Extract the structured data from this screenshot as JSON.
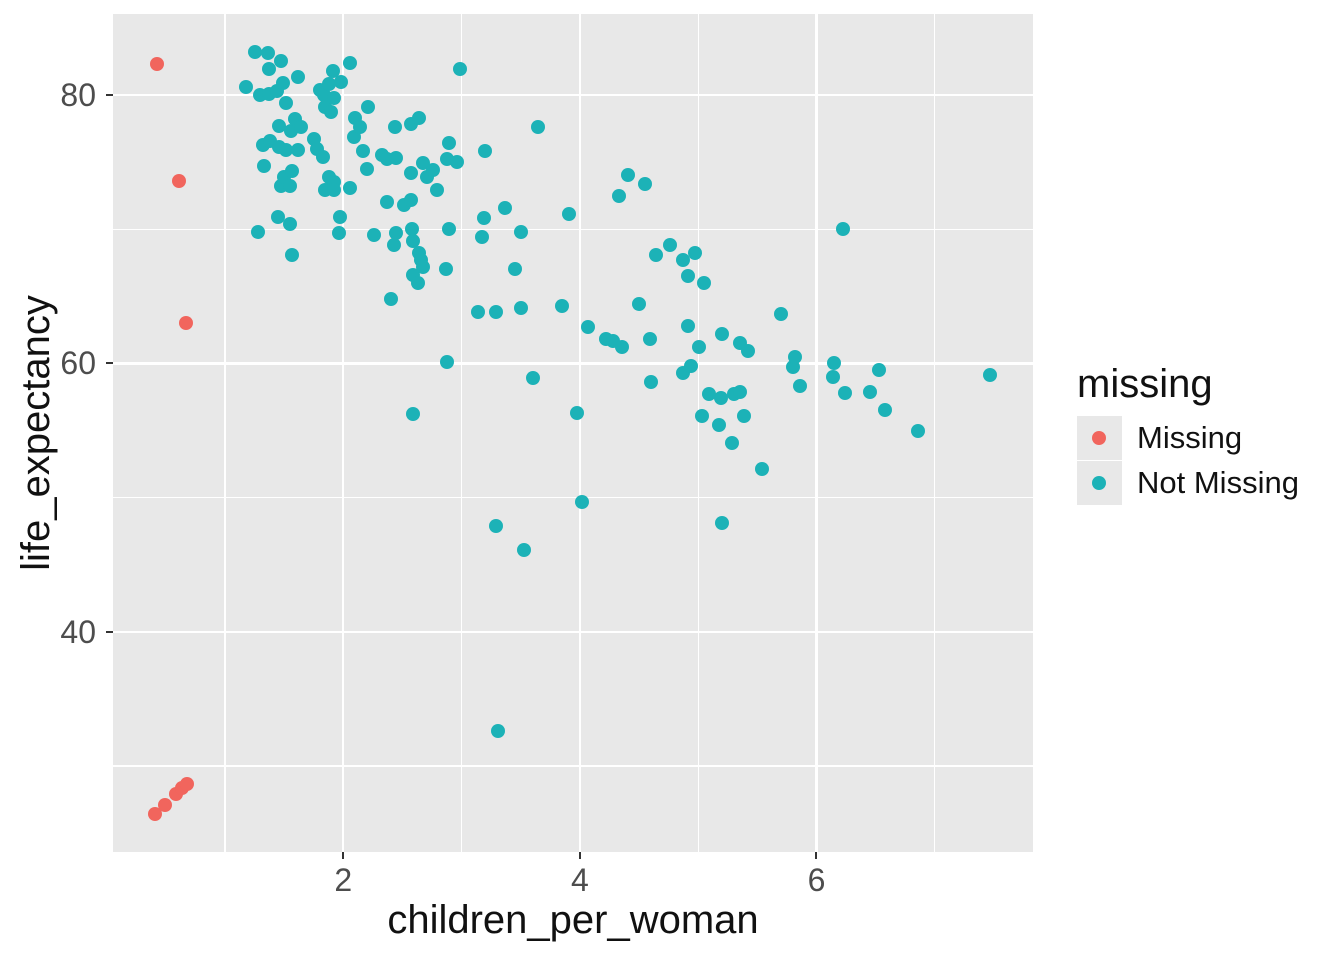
{
  "figure": {
    "background": "#FFFFFF",
    "panel_background": "#E8E8E8",
    "gridline_color": "#FFFFFF",
    "tick_color": "#333333",
    "tick_label_color": "#4D4D4D"
  },
  "legend": {
    "title": "missing",
    "items": [
      {
        "label": "Missing",
        "color": "#F1655D"
      },
      {
        "label": "Not Missing",
        "color": "#1CB2B7"
      }
    ]
  },
  "chart_data": {
    "type": "scatter",
    "title": "",
    "xlabel": "children_per_woman",
    "ylabel": "life_expectancy",
    "legend_title": "missing",
    "legend_position": "right",
    "grid": true,
    "xlim": [
      0.054,
      7.83
    ],
    "ylim": [
      23.6,
      86.03
    ],
    "x_major_ticks": [
      2,
      4,
      6
    ],
    "x_minor_ticks": [
      1,
      3,
      5,
      7
    ],
    "y_major_ticks": [
      40,
      60,
      80
    ],
    "y_minor_ticks": [
      30,
      50,
      70
    ],
    "series": [
      {
        "name": "Missing",
        "color": "#F1655D",
        "points": [
          [
            0.43,
            82.3
          ],
          [
            0.61,
            73.6
          ],
          [
            0.67,
            63.0
          ],
          [
            0.41,
            26.4
          ],
          [
            0.49,
            27.1
          ],
          [
            0.59,
            27.9
          ],
          [
            0.64,
            28.4
          ],
          [
            0.68,
            28.7
          ]
        ]
      },
      {
        "name": "Not Missing",
        "color": "#1CB2B7",
        "points": [
          [
            1.18,
            80.6
          ],
          [
            1.25,
            83.2
          ],
          [
            1.28,
            69.8
          ],
          [
            1.3,
            80.0
          ],
          [
            1.32,
            76.3
          ],
          [
            1.33,
            74.7
          ],
          [
            1.36,
            83.1
          ],
          [
            1.37,
            81.9
          ],
          [
            1.37,
            80.1
          ],
          [
            1.38,
            76.6
          ],
          [
            1.44,
            80.3
          ],
          [
            1.45,
            70.9
          ],
          [
            1.46,
            77.7
          ],
          [
            1.46,
            76.1
          ],
          [
            1.47,
            82.5
          ],
          [
            1.47,
            73.2
          ],
          [
            1.49,
            80.9
          ],
          [
            1.5,
            73.9
          ],
          [
            1.52,
            79.4
          ],
          [
            1.52,
            75.9
          ],
          [
            1.55,
            73.2
          ],
          [
            1.55,
            70.4
          ],
          [
            1.56,
            77.3
          ],
          [
            1.57,
            74.3
          ],
          [
            1.57,
            68.1
          ],
          [
            1.59,
            78.2
          ],
          [
            1.62,
            81.3
          ],
          [
            1.62,
            75.9
          ],
          [
            1.64,
            77.6
          ],
          [
            1.75,
            76.7
          ],
          [
            1.78,
            76.0
          ],
          [
            1.8,
            80.4
          ],
          [
            1.83,
            75.4
          ],
          [
            1.84,
            80.0
          ],
          [
            1.85,
            79.1
          ],
          [
            1.85,
            72.9
          ],
          [
            1.88,
            80.8
          ],
          [
            1.88,
            73.9
          ],
          [
            1.9,
            78.7
          ],
          [
            1.91,
            81.8
          ],
          [
            1.92,
            79.8
          ],
          [
            1.92,
            73.5
          ],
          [
            1.92,
            72.9
          ],
          [
            1.96,
            69.7
          ],
          [
            1.97,
            70.9
          ],
          [
            1.98,
            81.0
          ],
          [
            2.06,
            82.4
          ],
          [
            2.06,
            73.1
          ],
          [
            2.09,
            76.9
          ],
          [
            2.1,
            78.3
          ],
          [
            2.14,
            77.6
          ],
          [
            2.17,
            75.8
          ],
          [
            2.2,
            74.5
          ],
          [
            2.21,
            79.1
          ],
          [
            2.26,
            69.6
          ],
          [
            2.33,
            75.5
          ],
          [
            2.37,
            75.2
          ],
          [
            2.37,
            72.0
          ],
          [
            2.4,
            64.8
          ],
          [
            2.43,
            68.8
          ],
          [
            2.44,
            77.6
          ],
          [
            2.45,
            75.3
          ],
          [
            2.45,
            69.7
          ],
          [
            2.51,
            71.8
          ],
          [
            2.57,
            77.8
          ],
          [
            2.57,
            74.2
          ],
          [
            2.57,
            72.2
          ],
          [
            2.58,
            70.0
          ],
          [
            2.59,
            69.1
          ],
          [
            2.59,
            66.6
          ],
          [
            2.59,
            56.2
          ],
          [
            2.63,
            66.0
          ],
          [
            2.64,
            78.3
          ],
          [
            2.64,
            68.2
          ],
          [
            2.66,
            67.7
          ],
          [
            2.67,
            74.9
          ],
          [
            2.67,
            67.2
          ],
          [
            2.71,
            73.9
          ],
          [
            2.76,
            74.4
          ],
          [
            2.79,
            72.9
          ],
          [
            2.87,
            67.0
          ],
          [
            2.88,
            75.2
          ],
          [
            2.88,
            60.1
          ],
          [
            2.89,
            76.4
          ],
          [
            2.89,
            70.0
          ],
          [
            2.96,
            75.0
          ],
          [
            2.99,
            81.9
          ],
          [
            3.14,
            63.8
          ],
          [
            3.17,
            69.4
          ],
          [
            3.19,
            70.8
          ],
          [
            3.2,
            75.8
          ],
          [
            3.29,
            63.8
          ],
          [
            3.29,
            47.9
          ],
          [
            3.31,
            32.6
          ],
          [
            3.37,
            71.6
          ],
          [
            3.45,
            67.0
          ],
          [
            3.5,
            69.8
          ],
          [
            3.5,
            64.1
          ],
          [
            3.53,
            46.1
          ],
          [
            3.6,
            58.9
          ],
          [
            3.65,
            77.6
          ],
          [
            3.85,
            64.3
          ],
          [
            3.91,
            71.1
          ],
          [
            3.98,
            56.3
          ],
          [
            4.02,
            49.7
          ],
          [
            4.07,
            62.7
          ],
          [
            4.22,
            61.8
          ],
          [
            4.28,
            61.7
          ],
          [
            4.33,
            72.5
          ],
          [
            4.36,
            61.2
          ],
          [
            4.41,
            74.0
          ],
          [
            4.5,
            64.4
          ],
          [
            4.55,
            73.4
          ],
          [
            4.59,
            61.8
          ],
          [
            4.6,
            58.6
          ],
          [
            4.64,
            68.1
          ],
          [
            4.76,
            68.8
          ],
          [
            4.87,
            67.7
          ],
          [
            4.87,
            59.3
          ],
          [
            4.91,
            66.5
          ],
          [
            4.91,
            62.8
          ],
          [
            4.94,
            59.8
          ],
          [
            4.97,
            68.2
          ],
          [
            5.01,
            61.2
          ],
          [
            5.03,
            56.1
          ],
          [
            5.05,
            66.0
          ],
          [
            5.09,
            57.7
          ],
          [
            5.18,
            55.4
          ],
          [
            5.19,
            57.4
          ],
          [
            5.2,
            62.2
          ],
          [
            5.2,
            48.1
          ],
          [
            5.29,
            54.1
          ],
          [
            5.3,
            57.7
          ],
          [
            5.35,
            61.5
          ],
          [
            5.35,
            57.9
          ],
          [
            5.39,
            56.1
          ],
          [
            5.42,
            60.9
          ],
          [
            5.54,
            52.1
          ],
          [
            5.7,
            63.7
          ],
          [
            5.8,
            59.7
          ],
          [
            5.82,
            60.5
          ],
          [
            5.86,
            58.3
          ],
          [
            6.14,
            59.0
          ],
          [
            6.15,
            60.0
          ],
          [
            6.22,
            70.0
          ],
          [
            6.24,
            57.8
          ],
          [
            6.45,
            57.9
          ],
          [
            6.53,
            59.5
          ],
          [
            6.58,
            56.5
          ],
          [
            6.86,
            55.0
          ],
          [
            7.47,
            59.1
          ]
        ]
      }
    ]
  }
}
